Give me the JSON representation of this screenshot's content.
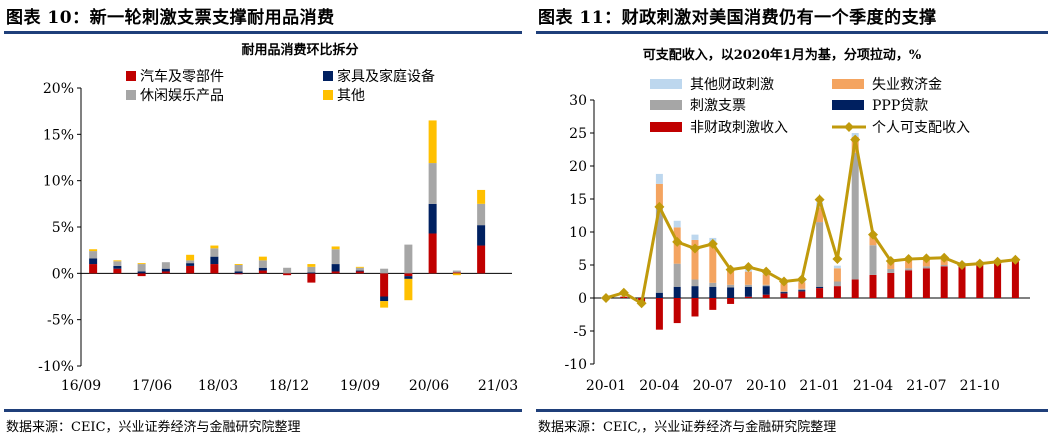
{
  "left": {
    "figure_title": "图表 10：新一轮刺激支票支撑耐用品消费",
    "source": "数据来源：CEIC，兴业证券经济与金融研究院整理"
  },
  "right": {
    "figure_title": "图表 11：财政刺激对美国消费仍有一个季度的支撑",
    "source": "数据来源：CEIC,，兴业证券经济与金融研究院整理"
  },
  "colors": {
    "red": "#c00000",
    "navy": "#002060",
    "gray": "#a6a6a6",
    "gold": "#ffc000",
    "lightblue": "#bdd7ee",
    "orange": "#f4a460",
    "line": "#c09a0c"
  },
  "chart_data": [
    {
      "type": "bar",
      "stacked": true,
      "title": "耐用品消费环比拆分",
      "ylim": [
        -10,
        20
      ],
      "yticks": [
        -10,
        -5,
        0,
        5,
        10,
        15,
        20
      ],
      "ytick_labels": [
        "-10%",
        "-5%",
        "0%",
        "5%",
        "10%",
        "15%",
        "20%"
      ],
      "x_tick_labels": [
        "16/09",
        "17/06",
        "18/03",
        "18/12",
        "19/09",
        "20/06",
        "21/03"
      ],
      "legend_position": "top",
      "series": [
        {
          "name": "汽车及零部件",
          "color": "red",
          "values": [
            1.0,
            0.5,
            -0.3,
            0.2,
            0.8,
            1.0,
            -0.1,
            0.3,
            -0.2,
            -1.0,
            0.2,
            0.2,
            -2.5,
            -0.3,
            4.3,
            0.1,
            3.0
          ]
        },
        {
          "name": "家具及家庭设备",
          "color": "navy",
          "values": [
            0.6,
            0.3,
            0.2,
            0.3,
            0.3,
            0.8,
            0.2,
            0.3,
            0.0,
            0.1,
            0.8,
            0.1,
            -0.5,
            -0.3,
            3.2,
            0.0,
            2.2
          ]
        },
        {
          "name": "休闲娱乐产品",
          "color": "gray",
          "values": [
            0.8,
            0.5,
            0.8,
            0.7,
            0.3,
            0.9,
            0.7,
            0.8,
            0.6,
            0.6,
            1.6,
            0.3,
            0.5,
            3.1,
            4.4,
            0.2,
            2.3
          ]
        },
        {
          "name": "其他",
          "color": "gold",
          "values": [
            0.2,
            0.1,
            0.1,
            0.0,
            0.6,
            0.3,
            0.1,
            0.4,
            0.0,
            0.3,
            0.3,
            0.1,
            -0.7,
            -2.3,
            4.6,
            -0.2,
            1.5
          ]
        }
      ]
    },
    {
      "type": "bar",
      "stacked": true,
      "title": "可支配收入，以2020年1月为基，分项拉动，%",
      "ylim": [
        -10,
        30
      ],
      "yticks": [
        -10,
        -5,
        0,
        5,
        10,
        15,
        20,
        25,
        30
      ],
      "ytick_labels": [
        "-10",
        "-5",
        "0",
        "5",
        "10",
        "15",
        "20",
        "25",
        "30"
      ],
      "categories": [
        "20-01",
        "20-02",
        "20-03",
        "20-04",
        "20-05",
        "20-06",
        "20-07",
        "20-08",
        "20-09",
        "20-10",
        "20-11",
        "20-12",
        "21-01",
        "21-02",
        "21-03",
        "21-04",
        "21-05",
        "21-06",
        "21-07",
        "21-08",
        "21-09",
        "21-10",
        "21-11",
        "21-12"
      ],
      "x_tick_labels": [
        "20-01",
        "20-04",
        "20-07",
        "20-10",
        "21-01",
        "21-04",
        "21-07",
        "21-10"
      ],
      "legend_position": "top",
      "series": [
        {
          "name": "非财政刺激收入",
          "color": "red",
          "values": [
            0,
            0.2,
            -0.8,
            -4.8,
            -3.8,
            -2.8,
            -1.8,
            -0.9,
            0.2,
            0.5,
            0.7,
            1.0,
            1.5,
            1.8,
            2.8,
            3.5,
            3.8,
            4.2,
            4.5,
            4.8,
            5.0,
            5.2,
            5.5,
            5.8
          ]
        },
        {
          "name": "PPP贷款",
          "color": "navy",
          "values": [
            0,
            0,
            0,
            0.8,
            1.7,
            1.8,
            1.7,
            1.6,
            1.5,
            1.3,
            0.2,
            0.2,
            0.2,
            0,
            0,
            0,
            0,
            0,
            0,
            0,
            0,
            0,
            0,
            0
          ]
        },
        {
          "name": "刺激支票",
          "color": "gray",
          "values": [
            0,
            0,
            0,
            13.0,
            3.5,
            1.0,
            0.6,
            0.4,
            0.3,
            0.2,
            0.1,
            0.2,
            9.8,
            0.7,
            19.2,
            4.5,
            0.6,
            0.3,
            0.3,
            0.2,
            0.1,
            0.1,
            0,
            0
          ]
        },
        {
          "name": "失业救济金",
          "color": "orange",
          "values": [
            0,
            0,
            0,
            3.5,
            5.5,
            6.0,
            6.0,
            2.2,
            2.0,
            1.6,
            1.2,
            1.0,
            2.2,
            2.0,
            2.4,
            1.4,
            1.2,
            1.2,
            1.0,
            0.8,
            0.2,
            0.2,
            0.1,
            0.1
          ]
        },
        {
          "name": "其他财政刺激",
          "color": "lightblue",
          "values": [
            0,
            0,
            0,
            1.5,
            1.0,
            0.8,
            0.8,
            0.4,
            0.4,
            0.3,
            0.2,
            0.2,
            0.8,
            0.4,
            0.6,
            0.3,
            0.2,
            0.2,
            0.2,
            0.2,
            0.1,
            0.1,
            0.1,
            0.1
          ]
        }
      ],
      "line_series": {
        "name": "个人可支配收入",
        "color": "line",
        "values": [
          0,
          0.8,
          -0.8,
          13.8,
          8.5,
          7.5,
          8.2,
          4.3,
          4.7,
          4.0,
          2.5,
          2.8,
          14.9,
          5.9,
          24.0,
          9.6,
          5.6,
          5.9,
          6.0,
          6.1,
          5.0,
          5.2,
          5.5,
          5.8
        ]
      }
    }
  ],
  "left_chart": {
    "title": "耐用品消费环比拆分",
    "legend": [
      "汽车及零部件",
      "家具及家庭设备",
      "休闲娱乐产品",
      "其他"
    ]
  },
  "right_chart": {
    "title": "可支配收入，以2020年1月为基，分项拉动，%",
    "legend": [
      "其他财政刺激",
      "失业救济金",
      "刺激支票",
      "PPP贷款",
      "非财政刺激收入",
      "个人可支配收入"
    ]
  }
}
